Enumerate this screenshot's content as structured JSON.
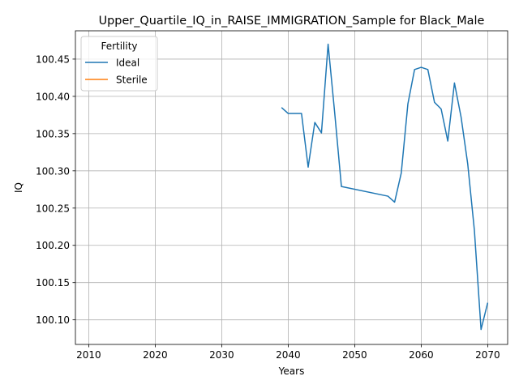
{
  "chart_data": {
    "type": "line",
    "title": "Upper_Quartile_IQ_in_RAISE_IMMIGRATION_Sample for Black_Male",
    "xlabel": "Years",
    "ylabel": "IQ",
    "xlim": [
      2008,
      2073
    ],
    "ylim": [
      100.067,
      100.488
    ],
    "xticks": [
      2010,
      2020,
      2030,
      2040,
      2050,
      2060,
      2070
    ],
    "yticks": [
      100.1,
      100.15,
      100.2,
      100.25,
      100.3,
      100.35,
      100.4,
      100.45
    ],
    "grid": true,
    "legend": {
      "title": "Fertility",
      "placement": "top-left",
      "entries": [
        "Ideal",
        "Sterile"
      ]
    },
    "series": [
      {
        "name": "Ideal",
        "color": "#1f77b4",
        "x": [
          2039,
          2040,
          2041,
          2042,
          2043,
          2044,
          2045,
          2046,
          2047,
          2048,
          2055,
          2056,
          2057,
          2058,
          2059,
          2060,
          2061,
          2062,
          2063,
          2064,
          2065,
          2066,
          2067,
          2068,
          2069,
          2070
        ],
        "y": [
          100.385,
          100.377,
          100.377,
          100.377,
          100.305,
          100.365,
          100.351,
          100.47,
          100.377,
          100.279,
          100.266,
          100.258,
          100.297,
          100.39,
          100.436,
          100.439,
          100.436,
          100.392,
          100.383,
          100.34,
          100.418,
          100.372,
          100.309,
          100.22,
          100.087,
          100.123
        ]
      },
      {
        "name": "Sterile",
        "color": "#ff7f0e",
        "x": [],
        "y": []
      }
    ]
  }
}
